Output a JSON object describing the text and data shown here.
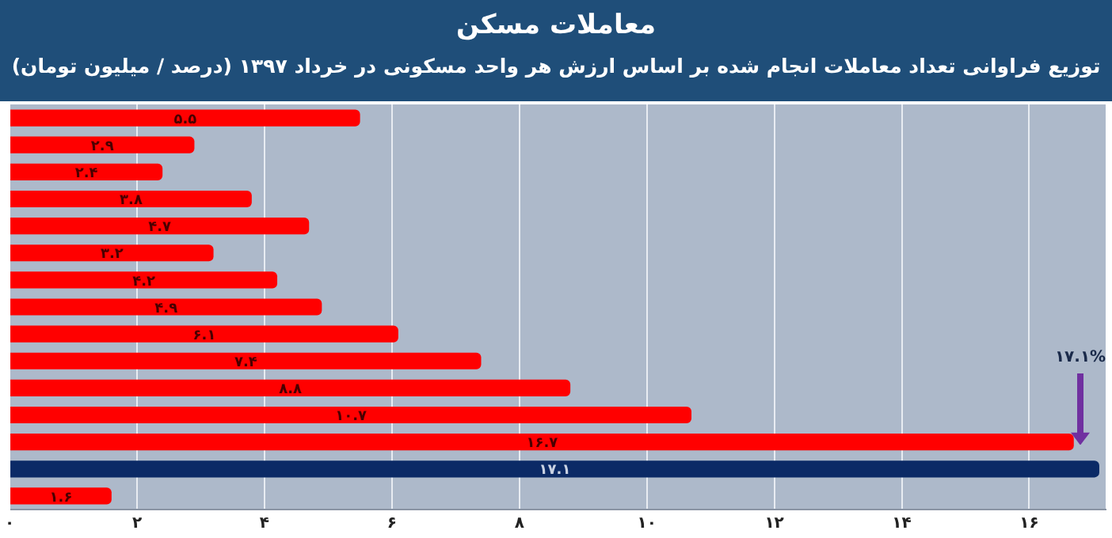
{
  "chart_data": {
    "type": "bar",
    "orientation": "horizontal",
    "title": "معاملات مسکن",
    "subtitle": "توزیع فراوانی تعداد معاملات انجام شده بر اساس ارزش هر واحد مسکونی در خرداد ۱۳۹۷ (درصد / میلیون تومان)",
    "categories": [
      null,
      null,
      null,
      null,
      null,
      null,
      null,
      null,
      null,
      null,
      null,
      null,
      null,
      null,
      null
    ],
    "values": [
      5.5,
      2.9,
      2.4,
      3.8,
      4.7,
      3.2,
      4.2,
      4.9,
      6.1,
      7.4,
      8.8,
      10.7,
      16.7,
      17.1,
      1.6
    ],
    "colors": [
      "#ff0000",
      "#ff0000",
      "#ff0000",
      "#ff0000",
      "#ff0000",
      "#ff0000",
      "#ff0000",
      "#ff0000",
      "#ff0000",
      "#ff0000",
      "#ff0000",
      "#ff0000",
      "#ff0000",
      "#0b2a66",
      "#ff0000"
    ],
    "value_labels": [
      "۵.۵",
      "۲.۹",
      "۲.۴",
      "۳.۸",
      "۴.۷",
      "۳.۲",
      "۴.۲",
      "۴.۹",
      "۶.۱",
      "۷.۴",
      "۸.۸",
      "۱۰.۷",
      "۱۶.۷",
      "۱۷.۱",
      "۱.۶"
    ],
    "xlim": [
      0,
      17.2
    ],
    "xticks": [
      {
        "value": 0,
        "label": "۰"
      },
      {
        "value": 2,
        "label": "۲"
      },
      {
        "value": 4,
        "label": "۴"
      },
      {
        "value": 6,
        "label": "۶"
      },
      {
        "value": 8,
        "label": "۸"
      },
      {
        "value": 10,
        "label": "۱۰"
      },
      {
        "value": 12,
        "label": "۱۲"
      },
      {
        "value": 14,
        "label": "۱۴"
      },
      {
        "value": 16,
        "label": "۱۶"
      }
    ],
    "grid": "x",
    "annotations": [
      "۱۷.۱%"
    ]
  }
}
